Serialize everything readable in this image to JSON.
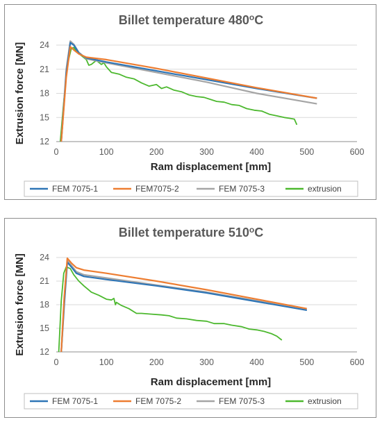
{
  "charts": [
    {
      "title_main": "Billet temperature 480",
      "title_sup": "o",
      "title_unit": "C",
      "xlabel": "Ram displacement [mm]",
      "ylabel": "Extrusion force [MN]",
      "legend": [
        "FEM 7075-1",
        "FEM7075-2",
        "FEM 7075-3",
        "extrusion"
      ]
    },
    {
      "title_main": "Billet temperature 510",
      "title_sup": "o",
      "title_unit": "C",
      "xlabel": "Ram displacement [mm]",
      "ylabel": "Extrusion force [MN]",
      "legend": [
        "FEM 7075-1",
        "FEM 7075-2",
        "FEM 7075-3",
        "extrusion"
      ]
    }
  ],
  "colors": {
    "fem1": "#2e75b6",
    "fem2": "#ed7d31",
    "fem3": "#a5a5a5",
    "extrusion": "#4cb82e",
    "grid": "#d9d9d9",
    "axis": "#8c8c8c"
  },
  "chart_data": [
    {
      "type": "line",
      "title": "Billet temperature 480oC",
      "xlabel": "Ram displacement [mm]",
      "ylabel": "Extrusion force [MN]",
      "xlim": [
        0,
        600
      ],
      "ylim": [
        12,
        24
      ],
      "xticks": [
        0,
        100,
        200,
        300,
        400,
        500,
        600
      ],
      "yticks": [
        12,
        15,
        18,
        21,
        24
      ],
      "grid": true,
      "legend_position": "bottom",
      "series": [
        {
          "name": "FEM 7075-1",
          "color": "#2e75b6",
          "x": [
            10,
            20,
            28,
            35,
            45,
            60,
            100,
            200,
            300,
            400,
            520
          ],
          "y": [
            12,
            20.5,
            24.3,
            24.0,
            23.0,
            22.4,
            21.9,
            20.8,
            19.7,
            18.6,
            17.4
          ]
        },
        {
          "name": "FEM7075-2",
          "color": "#ed7d31",
          "x": [
            10,
            20,
            28,
            35,
            45,
            60,
            100,
            200,
            300,
            400,
            520
          ],
          "y": [
            12,
            20.0,
            23.8,
            23.4,
            22.9,
            22.5,
            22.2,
            21.1,
            19.9,
            18.7,
            17.4
          ]
        },
        {
          "name": "FEM 7075-3",
          "color": "#a5a5a5",
          "x": [
            10,
            20,
            28,
            35,
            45,
            60,
            100,
            200,
            300,
            400,
            520
          ],
          "y": [
            12,
            21.0,
            24.5,
            24.1,
            23.1,
            22.3,
            21.8,
            20.6,
            19.4,
            18.0,
            16.7
          ]
        },
        {
          "name": "extrusion",
          "color": "#4cb82e",
          "x": [
            8,
            15,
            22,
            30,
            35,
            40,
            50,
            60,
            65,
            70,
            80,
            90,
            95,
            100,
            110,
            125,
            140,
            155,
            170,
            185,
            200,
            210,
            220,
            235,
            250,
            265,
            280,
            295,
            305,
            320,
            335,
            350,
            365,
            380,
            395,
            410,
            425,
            440,
            455,
            465,
            475,
            480
          ],
          "y": [
            12,
            17.0,
            21.5,
            23.6,
            23.7,
            23.2,
            22.7,
            22.2,
            21.5,
            21.6,
            22.1,
            21.6,
            21.8,
            21.3,
            20.6,
            20.4,
            20.0,
            19.8,
            19.3,
            18.9,
            19.1,
            18.6,
            18.8,
            18.4,
            18.2,
            17.8,
            17.6,
            17.5,
            17.3,
            17.0,
            16.9,
            16.6,
            16.5,
            16.1,
            15.9,
            15.8,
            15.4,
            15.2,
            15.0,
            14.9,
            14.8,
            14.1
          ]
        }
      ]
    },
    {
      "type": "line",
      "title": "Billet temperature 510oC",
      "xlabel": "Ram displacement [mm]",
      "ylabel": "Extrusion force [MN]",
      "xlim": [
        0,
        600
      ],
      "ylim": [
        12,
        24
      ],
      "xticks": [
        0,
        100,
        200,
        300,
        400,
        500,
        600
      ],
      "yticks": [
        12,
        15,
        18,
        21,
        24
      ],
      "grid": true,
      "legend_position": "bottom",
      "series": [
        {
          "name": "FEM 7075-1",
          "color": "#2e75b6",
          "x": [
            10,
            16,
            22,
            30,
            40,
            55,
            100,
            200,
            300,
            400,
            500
          ],
          "y": [
            12,
            18.0,
            23.4,
            22.8,
            22.0,
            21.6,
            21.2,
            20.4,
            19.5,
            18.4,
            17.3
          ]
        },
        {
          "name": "FEM 7075-2",
          "color": "#ed7d31",
          "x": [
            10,
            16,
            22,
            30,
            40,
            55,
            100,
            200,
            300,
            400,
            500
          ],
          "y": [
            12,
            19.0,
            23.9,
            23.3,
            22.7,
            22.4,
            22.0,
            21.0,
            19.9,
            18.7,
            17.5
          ]
        },
        {
          "name": "FEM 7075-3",
          "color": "#a5a5a5",
          "x": [
            10,
            16,
            22,
            30,
            40,
            55,
            100,
            200,
            300,
            400,
            500
          ],
          "y": [
            12,
            18.5,
            23.6,
            23.0,
            22.2,
            21.8,
            21.4,
            20.5,
            19.6,
            18.5,
            17.3
          ]
        },
        {
          "name": "extrusion",
          "color": "#4cb82e",
          "x": [
            5,
            10,
            15,
            20,
            28,
            35,
            45,
            55,
            70,
            85,
            100,
            110,
            115,
            118,
            120,
            130,
            145,
            160,
            170,
            190,
            210,
            225,
            240,
            260,
            280,
            300,
            315,
            335,
            350,
            370,
            385,
            400,
            415,
            430,
            440,
            450
          ],
          "y": [
            12,
            18.5,
            22.0,
            22.8,
            22.6,
            21.8,
            21.0,
            20.4,
            19.6,
            19.2,
            18.7,
            18.6,
            18.8,
            18.0,
            18.3,
            17.9,
            17.5,
            16.9,
            16.9,
            16.8,
            16.7,
            16.6,
            16.3,
            16.2,
            16.0,
            15.9,
            15.6,
            15.6,
            15.4,
            15.2,
            14.9,
            14.8,
            14.6,
            14.3,
            14.0,
            13.5
          ]
        }
      ]
    }
  ]
}
